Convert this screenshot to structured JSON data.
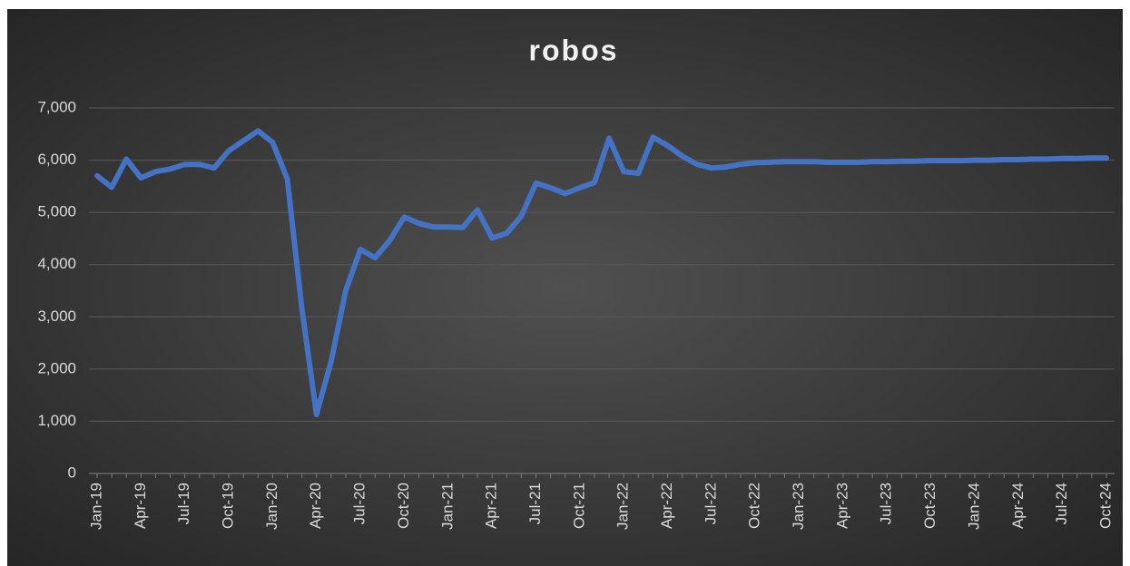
{
  "chart_data": {
    "type": "line",
    "title": "robos",
    "categories": [
      "Jan-19",
      null,
      null,
      "Apr-19",
      null,
      null,
      "Jul-19",
      null,
      null,
      "Oct-19",
      null,
      null,
      "Jan-20",
      null,
      null,
      "Apr-20",
      null,
      null,
      "Jul-20",
      null,
      null,
      "Oct-20",
      null,
      null,
      "Jan-21",
      null,
      null,
      "Apr-21",
      null,
      null,
      "Jul-21",
      null,
      null,
      "Oct-21",
      null,
      null,
      "Jan-22",
      null,
      null,
      "Apr-22",
      null,
      null,
      "Jul-22",
      null,
      null,
      "Oct-22",
      null,
      null,
      "Jan-23",
      null,
      null,
      "Apr-23",
      null,
      null,
      "Jul-23",
      null,
      null,
      "Oct-23",
      null,
      null,
      "Jan-24",
      null,
      null,
      "Apr-24",
      null,
      null,
      "Jul-24",
      null,
      null,
      "Oct-24"
    ],
    "values": [
      5700,
      5480,
      6020,
      5660,
      5780,
      5830,
      5920,
      5920,
      5850,
      6180,
      6370,
      6560,
      6340,
      5640,
      3160,
      1130,
      2150,
      3510,
      4290,
      4130,
      4460,
      4910,
      4790,
      4720,
      4720,
      4710,
      5050,
      4510,
      4600,
      4930,
      5560,
      5470,
      5360,
      5470,
      5570,
      6420,
      5780,
      5750,
      6440,
      6280,
      6080,
      5920,
      5850,
      5870,
      5920,
      5950,
      5960,
      5970,
      5970,
      5970,
      5960,
      5960,
      5960,
      5970,
      5970,
      5980,
      5980,
      5990,
      5990,
      5990,
      6000,
      6000,
      6010,
      6010,
      6020,
      6020,
      6030,
      6030,
      6040,
      6040
    ],
    "color": "#4472c4",
    "ylim": [
      0,
      7000
    ],
    "yticks": [
      0,
      {
        "value": 1000,
        "label": "1,000"
      },
      {
        "value": 2000,
        "label": "2,000"
      },
      {
        "value": 3000,
        "label": "3,000"
      },
      {
        "value": 4000,
        "label": "4,000"
      },
      {
        "value": 5000,
        "label": "5,000"
      },
      {
        "value": 6000,
        "label": "6,000"
      },
      {
        "value": 7000,
        "label": "7,000"
      }
    ],
    "grid": true
  }
}
